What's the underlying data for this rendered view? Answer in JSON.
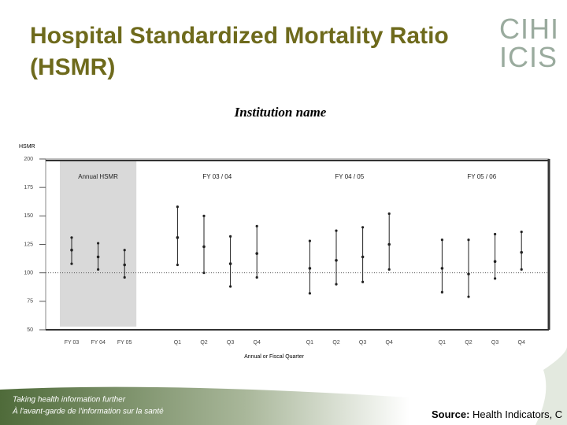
{
  "header": {
    "title": "Hospital Standardized Mortality Ratio (HSMR)",
    "logo_top": "CIHI",
    "logo_bottom": "ICIS"
  },
  "chart_data": {
    "type": "errorbar",
    "title": "Institution name",
    "y_label": "HSMR",
    "x_label": "Annual or Fiscal Quarter",
    "ylim": [
      50,
      200
    ],
    "yticks": [
      50,
      75,
      100,
      125,
      150,
      175,
      200
    ],
    "reference_line": 100,
    "color": "#222222",
    "groups": [
      {
        "name": "Annual HSMR",
        "shaded": true,
        "categories": [
          "FY 03",
          "FY 04",
          "FY 05"
        ],
        "values": [
          120,
          114,
          107
        ],
        "lower": [
          108,
          103,
          96
        ],
        "upper": [
          131,
          126,
          120
        ]
      },
      {
        "name": "FY 03 / 04",
        "shaded": false,
        "categories": [
          "Q1",
          "Q2",
          "Q3",
          "Q4"
        ],
        "values": [
          131,
          123,
          108,
          117
        ],
        "lower": [
          107,
          100,
          88,
          96
        ],
        "upper": [
          158,
          150,
          132,
          141
        ]
      },
      {
        "name": "FY 04 / 05",
        "shaded": false,
        "categories": [
          "Q1",
          "Q2",
          "Q3",
          "Q4"
        ],
        "values": [
          104,
          111,
          114,
          125
        ],
        "lower": [
          82,
          90,
          92,
          103
        ],
        "upper": [
          128,
          137,
          140,
          152
        ]
      },
      {
        "name": "FY 05 / 06",
        "shaded": false,
        "categories": [
          "Q1",
          "Q2",
          "Q3",
          "Q4"
        ],
        "values": [
          104,
          99,
          110,
          118
        ],
        "lower": [
          83,
          79,
          95,
          103
        ],
        "upper": [
          129,
          129,
          134,
          136
        ]
      }
    ]
  },
  "footer": {
    "tagline_en": "Taking health information further",
    "tagline_fr": "À l'avant-garde de l'information sur la santé",
    "source_label": "Source:",
    "source_text": "Health Indicators, C"
  }
}
